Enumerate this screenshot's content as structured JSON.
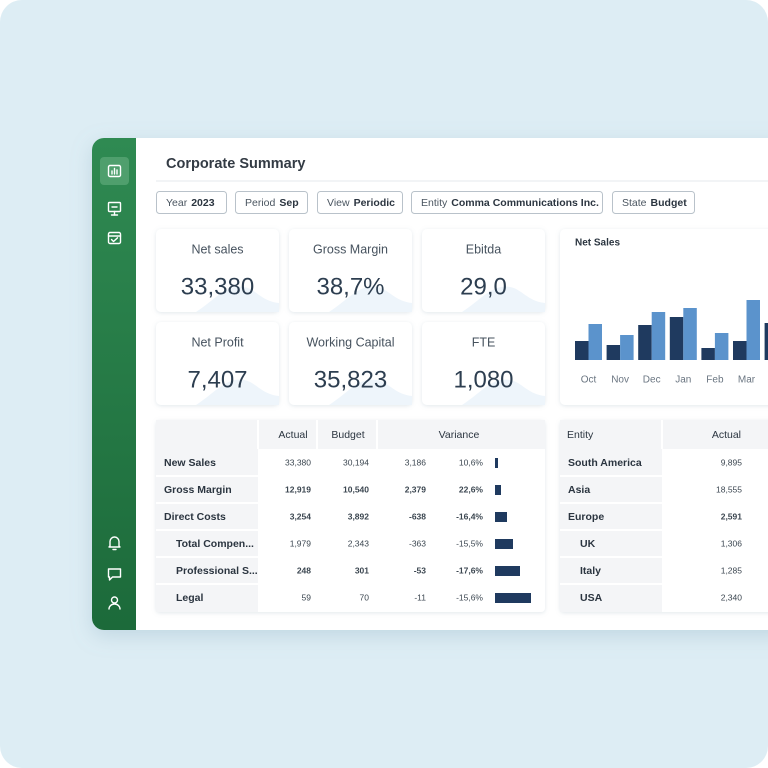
{
  "header": {
    "title": "Corporate Summary"
  },
  "filters": [
    {
      "label": "Year",
      "value": "2023"
    },
    {
      "label": "Period",
      "value": "Sep"
    },
    {
      "label": "View",
      "value": "Periodic"
    },
    {
      "label": "Entity",
      "value": "Comma Communications Inc."
    },
    {
      "label": "State",
      "value": "Budget"
    }
  ],
  "kpis": [
    {
      "label": "Net sales",
      "value": "33,380"
    },
    {
      "label": "Gross Margin",
      "value": "38,7%"
    },
    {
      "label": "Ebitda",
      "value": "29,0"
    },
    {
      "label": "Net Profit",
      "value": "7,407"
    },
    {
      "label": "Working Capital",
      "value": "35,823"
    },
    {
      "label": "FTE",
      "value": "1,080"
    }
  ],
  "chart_data": {
    "type": "bar",
    "title": "Net Sales",
    "categories": [
      "Oct",
      "Nov",
      "Dec",
      "Jan",
      "Feb",
      "Mar",
      null
    ],
    "series": [
      {
        "color": "#1f3a5f",
        "values": [
          19,
          15,
          35,
          43,
          12,
          19,
          37
        ]
      },
      {
        "color": "#5b93cc",
        "values": [
          36,
          25,
          48,
          52,
          27,
          60,
          null
        ]
      }
    ]
  },
  "variance_table": {
    "columns": [
      "Actual",
      "Budget",
      "Variance"
    ],
    "rows": [
      {
        "label": "New Sales",
        "values": [
          "33,380",
          "30,194",
          "3,186",
          "10,6%"
        ],
        "bar": 3,
        "bold": false,
        "indent": false
      },
      {
        "label": "Gross Margin",
        "values": [
          "12,919",
          "10,540",
          "2,379",
          "22,6%"
        ],
        "bar": 6,
        "bold": true,
        "indent": false
      },
      {
        "label": "Direct Costs",
        "values": [
          "3,254",
          "3,892",
          "-638",
          "-16,4%"
        ],
        "bar": 12,
        "bold": true,
        "indent": false
      },
      {
        "label": "Total Compen...",
        "values": [
          "1,979",
          "2,343",
          "-363",
          "-15,5%"
        ],
        "bar": 18,
        "bold": false,
        "indent": true
      },
      {
        "label": "Professional S...",
        "values": [
          "248",
          "301",
          "-53",
          "-17,6%"
        ],
        "bar": 25,
        "bold": true,
        "indent": true
      },
      {
        "label": "Legal",
        "values": [
          "59",
          "70",
          "-11",
          "-15,6%"
        ],
        "bar": 36,
        "bold": false,
        "indent": true
      }
    ]
  },
  "entity_table": {
    "columns": [
      "Entity",
      "Actual"
    ],
    "rows": [
      {
        "label": "South America",
        "value": "9,895",
        "bold": false,
        "indent": false
      },
      {
        "label": "Asia",
        "value": "18,555",
        "bold": false,
        "indent": false
      },
      {
        "label": "Europe",
        "value": "2,591",
        "bold": true,
        "indent": false
      },
      {
        "label": "UK",
        "value": "1,306",
        "bold": false,
        "indent": true
      },
      {
        "label": "Italy",
        "value": "1,285",
        "bold": false,
        "indent": true
      },
      {
        "label": "USA",
        "value": "2,340",
        "bold": false,
        "indent": true
      }
    ]
  }
}
